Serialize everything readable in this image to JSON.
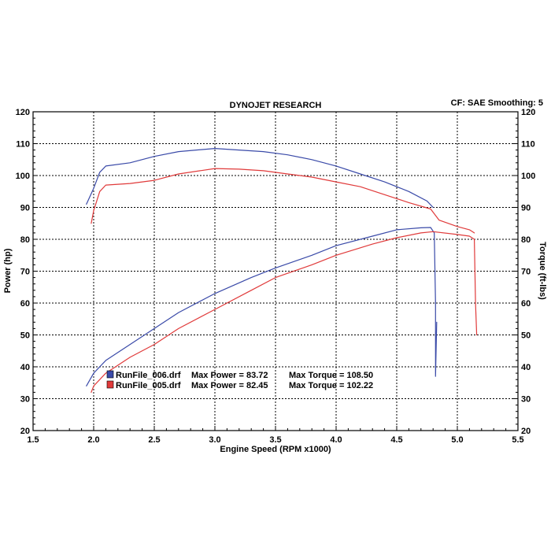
{
  "header": {
    "title": "DYNOJET RESEARCH",
    "settings": "CF: SAE  Smoothing: 5"
  },
  "chart_data": {
    "type": "line",
    "xlabel": "Engine Speed (RPM x1000)",
    "ylabel_left": "Power (hp)",
    "ylabel_right": "Torque (ft-lbs)",
    "xlim": [
      1.5,
      5.5
    ],
    "ylim": [
      20,
      120
    ],
    "x_ticks": [
      "1.5",
      "2.0",
      "2.5",
      "3.0",
      "3.5",
      "4.0",
      "4.5",
      "5.0",
      "5.5"
    ],
    "y_ticks": [
      "20",
      "30",
      "40",
      "50",
      "60",
      "70",
      "80",
      "90",
      "100",
      "110",
      "120"
    ],
    "grid": true,
    "colors": {
      "run006": "#3a4aa8",
      "run005": "#e03a3a"
    },
    "legend": [
      {
        "file": "RunFile_006.drf",
        "power_text": "Max Power = 83.72",
        "torque_text": "Max Torque = 108.50",
        "color": "#3a4aa8"
      },
      {
        "file": "RunFile_005.drf",
        "power_text": "Max Power = 82.45",
        "torque_text": "Max Torque = 102.22",
        "color": "#e03a3a"
      }
    ],
    "series": [
      {
        "name": "RunFile_006.drf",
        "measure": "Power",
        "color": "#3a4aa8",
        "x": [
          1.94,
          2.0,
          2.1,
          2.3,
          2.5,
          2.7,
          3.0,
          3.3,
          3.5,
          3.8,
          4.0,
          4.3,
          4.5,
          4.7,
          4.78,
          4.81,
          4.82,
          4.82,
          4.83
        ],
        "y": [
          34,
          38,
          42,
          47,
          52,
          57,
          63,
          68,
          71,
          75,
          78,
          81,
          83,
          83.6,
          83.7,
          82,
          60,
          37,
          54
        ]
      },
      {
        "name": "RunFile_006.drf",
        "measure": "Torque",
        "color": "#3a4aa8",
        "x": [
          1.94,
          2.0,
          2.05,
          2.1,
          2.3,
          2.5,
          2.7,
          3.0,
          3.2,
          3.4,
          3.6,
          3.8,
          4.0,
          4.2,
          4.4,
          4.6,
          4.75,
          4.8
        ],
        "y": [
          91,
          96,
          101,
          103,
          104,
          106,
          107.5,
          108.5,
          108,
          107.5,
          106.5,
          105,
          103,
          100.5,
          98,
          95,
          92,
          90
        ]
      },
      {
        "name": "RunFile_005.drf",
        "measure": "Power",
        "color": "#e03a3a",
        "x": [
          1.98,
          2.0,
          2.1,
          2.3,
          2.5,
          2.7,
          3.0,
          3.3,
          3.5,
          3.8,
          4.0,
          4.3,
          4.5,
          4.7,
          4.8,
          5.0,
          5.1,
          5.14,
          5.15,
          5.16
        ],
        "y": [
          32,
          34,
          38,
          43,
          47,
          52,
          58,
          64,
          68,
          72,
          75,
          78.5,
          80.5,
          82,
          82.4,
          81.5,
          81,
          80,
          60,
          50
        ]
      },
      {
        "name": "RunFile_005.drf",
        "measure": "Torque",
        "color": "#e03a3a",
        "x": [
          1.98,
          2.0,
          2.05,
          2.1,
          2.3,
          2.5,
          2.7,
          3.0,
          3.2,
          3.4,
          3.6,
          3.8,
          4.0,
          4.2,
          4.4,
          4.6,
          4.78,
          4.85,
          5.0,
          5.1,
          5.14
        ],
        "y": [
          85,
          89,
          95,
          97,
          97.5,
          98.5,
          100.5,
          102.2,
          102,
          101.5,
          100.5,
          99.5,
          98,
          96.5,
          94,
          91.5,
          89.5,
          86,
          84,
          83,
          82
        ]
      }
    ]
  }
}
